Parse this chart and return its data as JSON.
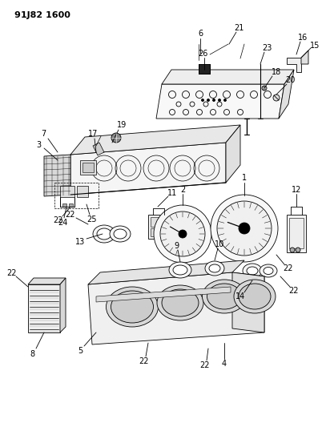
{
  "title": "91J82 1600",
  "bg_color": "#ffffff",
  "line_color": "#000000",
  "text_color": "#000000",
  "title_fontsize": 8,
  "label_fontsize": 7
}
